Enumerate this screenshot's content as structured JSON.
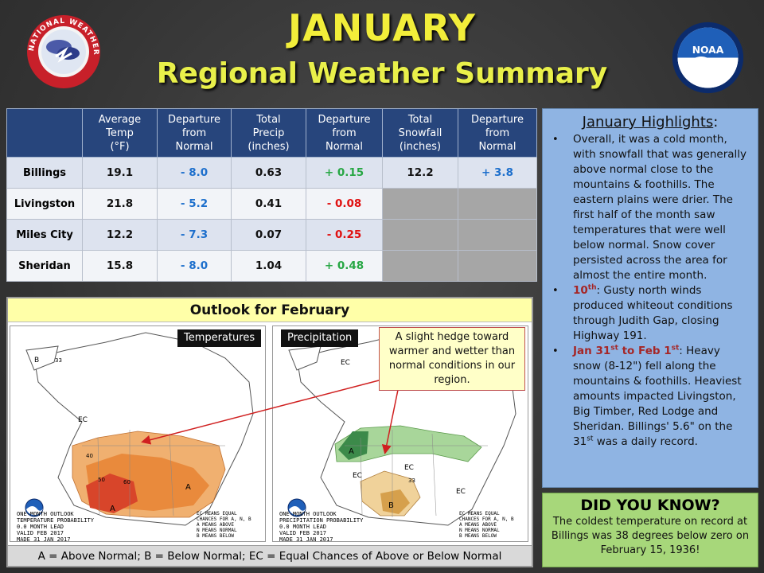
{
  "header": {
    "title": "JANUARY",
    "subtitle": "Regional Weather Summary",
    "nws_logo_text": "NATIONAL WEATHER SERVICE",
    "noaa_logo_text": "NOAA"
  },
  "table": {
    "columns": [
      "",
      "Average Temp (°F)",
      "Departure from Normal",
      "Total Precip (inches)",
      "Departure from Normal",
      "Total Snowfall (inches)",
      "Departure from Normal"
    ],
    "rows": [
      {
        "city": "Billings",
        "avg_temp": "19.1",
        "temp_dep": "- 8.0",
        "precip": "0.63",
        "precip_dep": "+ 0.15",
        "snow": "12.2",
        "snow_dep": "+ 3.8"
      },
      {
        "city": "Livingston",
        "avg_temp": "21.8",
        "temp_dep": "- 5.2",
        "precip": "0.41",
        "precip_dep": "- 0.08",
        "snow": "",
        "snow_dep": ""
      },
      {
        "city": "Miles City",
        "avg_temp": "12.2",
        "temp_dep": "- 7.3",
        "precip": "0.07",
        "precip_dep": "- 0.25",
        "snow": "",
        "snow_dep": ""
      },
      {
        "city": "Sheridan",
        "avg_temp": "15.8",
        "temp_dep": "- 8.0",
        "precip": "1.04",
        "precip_dep": "+ 0.48",
        "snow": "",
        "snow_dep": ""
      }
    ]
  },
  "outlook": {
    "title": "Outlook for February",
    "temp_label": "Temperatures",
    "precip_label": "Precipitation",
    "callout": "A slight hedge toward warmer and wetter than normal conditions in our region.",
    "temp_caption": "ONE-MONTH OUTLOOK\nTEMPERATURE PROBABILITY\n0.0 MONTH LEAD\nVALID FEB 2017\nMADE 31 JAN 2017",
    "precip_caption": "ONE-MONTH OUTLOOK\nPRECIPITATION PROBABILITY\n0.0 MONTH LEAD\nVALID FEB 2017\nMADE 31 JAN 2017",
    "map_legend_caption": "EC MEANS EQUAL\nCHANCES FOR A, N, B\nA MEANS ABOVE\nN MEANS NORMAL\nB MEANS BELOW",
    "legend": "A = Above Normal;  B = Below Normal;  EC = Equal Chances of Above or Below Normal",
    "map_marks": {
      "ec": "EC",
      "a": "A",
      "b": "B",
      "v33": "33",
      "v40": "40",
      "v50": "50",
      "v60": "60"
    }
  },
  "highlights": {
    "title": "January Highlights",
    "title_colon": ":",
    "items": [
      {
        "date": "",
        "date_sup": "",
        "date2": "",
        "date2_sup": "",
        "text": "Overall, it was a cold month, with snowfall that was generally above normal close to the mountains & foothills. The eastern plains were drier. The first half of the month saw temperatures that were well below normal. Snow cover persisted across the area for almost the entire month."
      },
      {
        "date": "10",
        "date_sup": "th",
        "date2": "",
        "date2_sup": "",
        "text": ": Gusty north winds produced whiteout conditions through Judith Gap, closing Highway 191."
      },
      {
        "date": "Jan 31",
        "date_sup": "st",
        "date2": " to Feb 1",
        "date2_sup": "st",
        "text": ": Heavy snow (8-12\") fell along the mountains & foothills. Heaviest amounts impacted Livingston, Big Timber, Red Lodge and Sheridan. Billings' 5.6\" on the 31",
        "text_sup": "st",
        "text_end": " was a daily record."
      }
    ]
  },
  "did_you_know": {
    "title": "DID YOU KNOW?",
    "text": "The coldest temperature on record at Billings was 38 degrees below zero on February 15, 1936!"
  },
  "colors": {
    "title_yellow": "#f2ee3a",
    "table_header": "#27457c",
    "negative": "#1d6fcc",
    "positive": "#28a745",
    "red": "#e01010",
    "highlights_bg": "#8fb4e3",
    "dyk_bg": "#a7d77a"
  }
}
